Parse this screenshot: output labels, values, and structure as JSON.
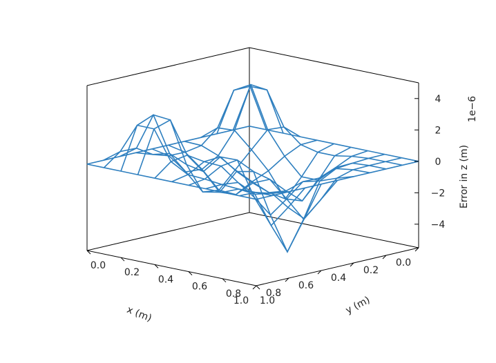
{
  "chart_data": {
    "type": "wireframe-3d",
    "xlabel": "x (m)",
    "ylabel": "y (m)",
    "zlabel": "Error in z (m)",
    "z_offset_label": "1e−6",
    "x_ticks": [
      "1.0",
      "0.8",
      "0.6",
      "0.4",
      "0.2",
      "0.0"
    ],
    "y_ticks": [
      "1.0",
      "0.8",
      "0.6",
      "0.4",
      "0.2",
      "0.0"
    ],
    "z_ticks": [
      "4",
      "2",
      "0",
      "−2",
      "−4"
    ],
    "xlim": [
      0,
      1
    ],
    "ylim": [
      0,
      1
    ],
    "zlim": [
      -5.5,
      5
    ],
    "z_scale": 1e-06,
    "grid_x": [
      0,
      0.1,
      0.2,
      0.3,
      0.4,
      0.5,
      0.6,
      0.7,
      0.8,
      0.9,
      1.0
    ],
    "grid_y": [
      0,
      0.1,
      0.2,
      0.3,
      0.4,
      0.5,
      0.6,
      0.7,
      0.8,
      0.9,
      1.0
    ],
    "line_color": "#2e7fbf"
  }
}
